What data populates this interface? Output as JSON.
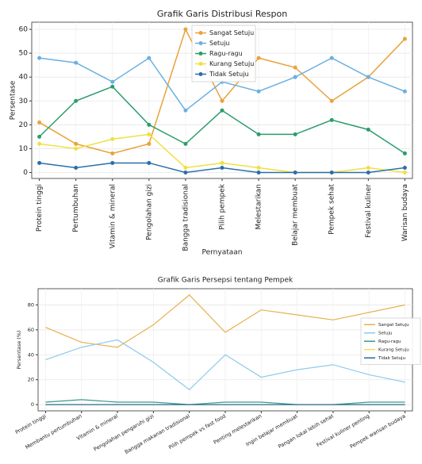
{
  "chart_data": [
    {
      "type": "line",
      "title": "Grafik Garis Distribusi Respon",
      "xlabel": "Pernyataan",
      "ylabel": "Persentase",
      "categories": [
        "Protein tinggi",
        "Pertumbuhan",
        "Vitamin & mineral",
        "Pengolahan gizi",
        "Bangga tradisional",
        "Pilih pempek",
        "Melestarikan",
        "Belajar membuat",
        "Pempek sehat",
        "Festival kuliner",
        "Warisan budaya"
      ],
      "series": [
        {
          "name": "Sangat Setuju",
          "color": "#e8a33a",
          "values": [
            21,
            12,
            8,
            12,
            60,
            30,
            48,
            44,
            30,
            40,
            56
          ]
        },
        {
          "name": "Setuju",
          "color": "#6ab0e0",
          "values": [
            48,
            46,
            38,
            48,
            26,
            38,
            34,
            40,
            48,
            40,
            34
          ]
        },
        {
          "name": "Ragu-ragu",
          "color": "#2a9d6a",
          "values": [
            15,
            30,
            36,
            20,
            12,
            26,
            16,
            16,
            22,
            18,
            8
          ]
        },
        {
          "name": "Kurang Setuju",
          "color": "#f0e040",
          "values": [
            12,
            10,
            14,
            16,
            2,
            4,
            2,
            0,
            0,
            2,
            0
          ]
        },
        {
          "name": "Tidak Setuju",
          "color": "#2a6faa",
          "values": [
            4,
            2,
            4,
            4,
            0,
            2,
            0,
            0,
            0,
            0,
            2
          ]
        }
      ],
      "ylim": [
        -2.5,
        63
      ],
      "yticks": [
        0,
        10,
        20,
        30,
        40,
        50,
        60
      ],
      "grid": true,
      "markers": true,
      "legend": "upper center"
    },
    {
      "type": "line",
      "title": "Grafik Garis Persepsi tentang Pempek",
      "ylabel": "Persentase (%)",
      "categories": [
        "Protein tinggi",
        "Membantu pertumbuhan",
        "Vitamin & mineral",
        "Pengolahan pengaruhi gizi",
        "Bangga makanan tradisional",
        "Pilih pempek vs fast food",
        "Penting melestarikan",
        "Ingin belajar membuat",
        "Pangan lokal lebih sehat",
        "Festival kuliner penting",
        "Pempek warisan budaya"
      ],
      "series": [
        {
          "name": "Sangat Setuju",
          "color": "#e8b04a",
          "values": [
            62,
            50,
            46,
            64,
            88,
            58,
            76,
            72,
            68,
            74,
            80
          ]
        },
        {
          "name": "Setuju",
          "color": "#8ccbea",
          "values": [
            36,
            46,
            52,
            34,
            12,
            40,
            22,
            28,
            32,
            24,
            18
          ]
        },
        {
          "name": "Ragu-ragu",
          "color": "#3a9a8a",
          "values": [
            2,
            4,
            2,
            2,
            0,
            2,
            2,
            0,
            0,
            2,
            2
          ]
        },
        {
          "name": "Kurang Setuju",
          "color": "#f5e050",
          "values": [
            0,
            0,
            0,
            0,
            0,
            0,
            0,
            0,
            0,
            0,
            0
          ]
        },
        {
          "name": "Tidak Setuju",
          "color": "#2a6aa0",
          "values": [
            0,
            0,
            0,
            0,
            0,
            0,
            0,
            0,
            0,
            0,
            0
          ]
        }
      ],
      "ylim": [
        -5,
        93
      ],
      "yticks": [
        0,
        20,
        40,
        60,
        80
      ],
      "grid": true,
      "markers": false,
      "legend": "center right"
    }
  ]
}
